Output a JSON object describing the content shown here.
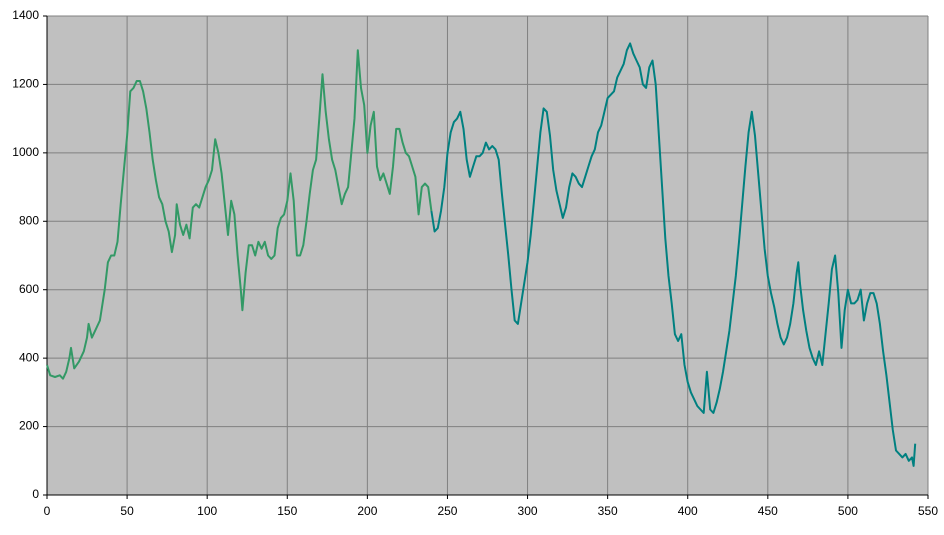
{
  "chart_data": {
    "type": "line",
    "xlim": [
      0,
      550
    ],
    "ylim": [
      0,
      1400
    ],
    "xticks": [
      0,
      50,
      100,
      150,
      200,
      250,
      300,
      350,
      400,
      450,
      500,
      550
    ],
    "yticks": [
      0,
      200,
      400,
      600,
      800,
      1000,
      1200,
      1400
    ],
    "grid": true,
    "series": [
      {
        "color": "#339966",
        "x": [
          0,
          2,
          5,
          8,
          10,
          12,
          14,
          15,
          17,
          20,
          23,
          25,
          26,
          28,
          30,
          33,
          36,
          38,
          40,
          42,
          44,
          46,
          48,
          50,
          52,
          54,
          56,
          58,
          60,
          62,
          64,
          66,
          68,
          70,
          72,
          74,
          76,
          78,
          80,
          81,
          83,
          85,
          87,
          89,
          91,
          93,
          95,
          97,
          99,
          101,
          103,
          105,
          107,
          109,
          111,
          113,
          115,
          117,
          119,
          121,
          122,
          124,
          126,
          128,
          130,
          132,
          134,
          136,
          138,
          140,
          142,
          144,
          146,
          148,
          150,
          152,
          154,
          156,
          158,
          160,
          162,
          164,
          166,
          168,
          170,
          172,
          174,
          176,
          178,
          180,
          182,
          184,
          186,
          188,
          190,
          192,
          194,
          196,
          198,
          200,
          202,
          204,
          206,
          208,
          210,
          212,
          214,
          216,
          218,
          220,
          222,
          224,
          226,
          228,
          230,
          232,
          234,
          236,
          238,
          240
        ],
        "values": [
          380,
          350,
          345,
          350,
          340,
          360,
          400,
          430,
          370,
          390,
          420,
          460,
          500,
          460,
          480,
          510,
          600,
          680,
          700,
          700,
          740,
          850,
          950,
          1050,
          1180,
          1190,
          1210,
          1210,
          1180,
          1130,
          1060,
          980,
          920,
          870,
          850,
          800,
          770,
          710,
          760,
          850,
          790,
          760,
          790,
          750,
          840,
          850,
          840,
          870,
          900,
          920,
          950,
          1040,
          1000,
          940,
          850,
          760,
          860,
          820,
          700,
          600,
          540,
          650,
          730,
          730,
          700,
          740,
          720,
          740,
          700,
          690,
          700,
          780,
          810,
          820,
          860,
          940,
          860,
          700,
          700,
          730,
          800,
          880,
          950,
          980,
          1100,
          1230,
          1120,
          1040,
          980,
          950,
          900,
          850,
          880,
          900,
          1000,
          1100,
          1300,
          1190,
          1140,
          1000,
          1080,
          1120,
          960,
          920,
          940,
          910,
          880,
          960,
          1070,
          1070,
          1030,
          1000,
          990,
          960,
          930,
          820,
          900,
          910,
          900,
          830
        ]
      },
      {
        "color": "#008080",
        "x": [
          240,
          242,
          244,
          246,
          248,
          250,
          252,
          254,
          256,
          258,
          260,
          262,
          264,
          266,
          268,
          270,
          272,
          274,
          276,
          278,
          280,
          282,
          284,
          286,
          288,
          290,
          292,
          294,
          296,
          298,
          300,
          302,
          304,
          306,
          308,
          310,
          312,
          314,
          316,
          318,
          320,
          322,
          324,
          326,
          328,
          330,
          332,
          334,
          336,
          338,
          340,
          342,
          344,
          346,
          348,
          350,
          352,
          354,
          356,
          358,
          360,
          362,
          364,
          366,
          368,
          370,
          372,
          374,
          376,
          378,
          380,
          382,
          384,
          386,
          388,
          390,
          392,
          394,
          396,
          398,
          400,
          402,
          404,
          406,
          408,
          410,
          412,
          414,
          416,
          418,
          420,
          422,
          424,
          426,
          428,
          430,
          432,
          434,
          436,
          438,
          440,
          442,
          444,
          446,
          448,
          450,
          452,
          454,
          456,
          458,
          460,
          462,
          464,
          466,
          468,
          469,
          470,
          472,
          474,
          476,
          478,
          480,
          482,
          484,
          486,
          488,
          490,
          492,
          494,
          496,
          498,
          500,
          502,
          504,
          506,
          508,
          510,
          512,
          514,
          516,
          518,
          520,
          522,
          524,
          526,
          528,
          530,
          532,
          534,
          536,
          538,
          540,
          541,
          542
        ],
        "values": [
          830,
          770,
          780,
          830,
          900,
          1000,
          1060,
          1090,
          1100,
          1120,
          1070,
          980,
          930,
          960,
          990,
          990,
          1000,
          1030,
          1010,
          1020,
          1010,
          980,
          880,
          790,
          700,
          600,
          510,
          500,
          560,
          620,
          680,
          760,
          860,
          960,
          1060,
          1130,
          1120,
          1050,
          950,
          890,
          850,
          810,
          840,
          900,
          940,
          930,
          910,
          900,
          930,
          960,
          990,
          1010,
          1060,
          1080,
          1120,
          1160,
          1170,
          1180,
          1220,
          1240,
          1260,
          1300,
          1320,
          1290,
          1270,
          1250,
          1200,
          1190,
          1250,
          1270,
          1200,
          1050,
          900,
          750,
          640,
          560,
          470,
          450,
          470,
          380,
          330,
          300,
          280,
          260,
          250,
          240,
          360,
          250,
          240,
          270,
          310,
          360,
          420,
          480,
          560,
          640,
          740,
          850,
          960,
          1060,
          1120,
          1050,
          940,
          830,
          720,
          640,
          590,
          550,
          500,
          460,
          440,
          460,
          500,
          560,
          650,
          680,
          620,
          540,
          480,
          430,
          400,
          380,
          420,
          380,
          470,
          560,
          660,
          700,
          590,
          430,
          540,
          600,
          560,
          560,
          570,
          600,
          510,
          560,
          590,
          590,
          560,
          500,
          420,
          350,
          270,
          190,
          130,
          120,
          110,
          120,
          100,
          110,
          85,
          150
        ]
      }
    ]
  }
}
